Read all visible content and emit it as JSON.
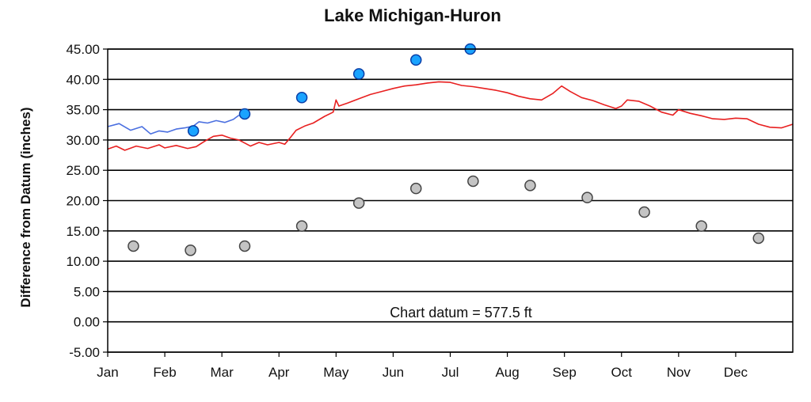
{
  "chart_data": {
    "type": "line",
    "title": "Lake Michigan-Huron",
    "xlabel": "",
    "ylabel": "Difference from Datum (inches)",
    "ylim": [
      -5,
      45
    ],
    "yticks": [
      "45.00",
      "40.00",
      "35.00",
      "30.00",
      "25.00",
      "20.00",
      "15.00",
      "10.00",
      "5.00",
      "0.00",
      "-5.00"
    ],
    "grid": true,
    "months": [
      "Jan",
      "Feb",
      "Mar",
      "Apr",
      "May",
      "Jun",
      "Jul",
      "Aug",
      "Sep",
      "Oct",
      "Nov",
      "Dec"
    ],
    "annotation": "Chart datum = 577.5 ft",
    "colors": {
      "red_line": "#e82020",
      "blue_line": "#4a6fe0",
      "blue_points": "#1aa3ff",
      "gray_points": "#c4c4c4"
    },
    "series": [
      {
        "type": "line",
        "color": "red",
        "x": [
          0,
          0.15,
          0.3,
          0.5,
          0.7,
          0.9,
          1.0,
          1.2,
          1.4,
          1.55,
          1.7,
          1.85,
          2.0,
          2.15,
          2.3,
          2.5,
          2.65,
          2.8,
          3.0,
          3.1,
          3.2,
          3.3,
          3.45,
          3.6,
          3.8,
          3.95,
          4.0,
          4.05,
          4.2,
          4.4,
          4.6,
          4.8,
          5.0,
          5.2,
          5.4,
          5.6,
          5.8,
          6.0,
          6.2,
          6.4,
          6.6,
          6.8,
          7.0,
          7.2,
          7.4,
          7.6,
          7.8,
          7.95,
          8.1,
          8.3,
          8.5,
          8.7,
          8.9,
          9.0,
          9.1,
          9.3,
          9.5,
          9.7,
          9.9,
          10.0,
          10.2,
          10.4,
          10.6,
          10.8,
          11.0,
          11.2,
          11.4,
          11.6,
          11.8,
          12.0
        ],
        "y": [
          28.5,
          29.0,
          28.3,
          29.0,
          28.6,
          29.2,
          28.7,
          29.1,
          28.6,
          28.9,
          29.8,
          30.6,
          30.8,
          30.3,
          30.0,
          29.0,
          29.6,
          29.2,
          29.6,
          29.3,
          30.4,
          31.6,
          32.3,
          32.8,
          33.9,
          34.6,
          36.6,
          35.6,
          36.1,
          36.8,
          37.5,
          38.0,
          38.5,
          38.9,
          39.1,
          39.4,
          39.6,
          39.5,
          39.0,
          38.8,
          38.5,
          38.2,
          37.8,
          37.2,
          36.8,
          36.6,
          37.7,
          38.9,
          38.0,
          37.0,
          36.5,
          35.8,
          35.2,
          35.6,
          36.6,
          36.4,
          35.6,
          34.6,
          34.1,
          35.0,
          34.4,
          34.0,
          33.5,
          33.4,
          33.6,
          33.5,
          32.6,
          32.1,
          32.0,
          32.6
        ]
      },
      {
        "type": "line",
        "color": "blue",
        "x": [
          0,
          0.2,
          0.4,
          0.6,
          0.75,
          0.9,
          1.05,
          1.2,
          1.35,
          1.5,
          1.6,
          1.75,
          1.9,
          2.05,
          2.2,
          2.3
        ],
        "y": [
          32.2,
          32.7,
          31.6,
          32.2,
          31.0,
          31.5,
          31.3,
          31.8,
          32.0,
          32.3,
          33.0,
          32.8,
          33.2,
          32.9,
          33.4,
          34.1
        ]
      },
      {
        "type": "scatter",
        "color": "blue",
        "x": [
          1.5,
          2.4,
          3.4,
          4.4,
          5.4,
          6.35
        ],
        "y": [
          31.5,
          34.3,
          37.0,
          40.9,
          43.2,
          45.0
        ]
      },
      {
        "type": "scatter",
        "color": "gray",
        "x": [
          0.45,
          1.45,
          2.4,
          3.4,
          4.4,
          5.4,
          6.4,
          7.4,
          8.4,
          9.4,
          10.4,
          11.4
        ],
        "y": [
          12.5,
          11.8,
          12.5,
          15.8,
          19.6,
          22.0,
          23.2,
          22.5,
          20.5,
          18.1,
          15.8,
          13.8
        ]
      }
    ]
  }
}
